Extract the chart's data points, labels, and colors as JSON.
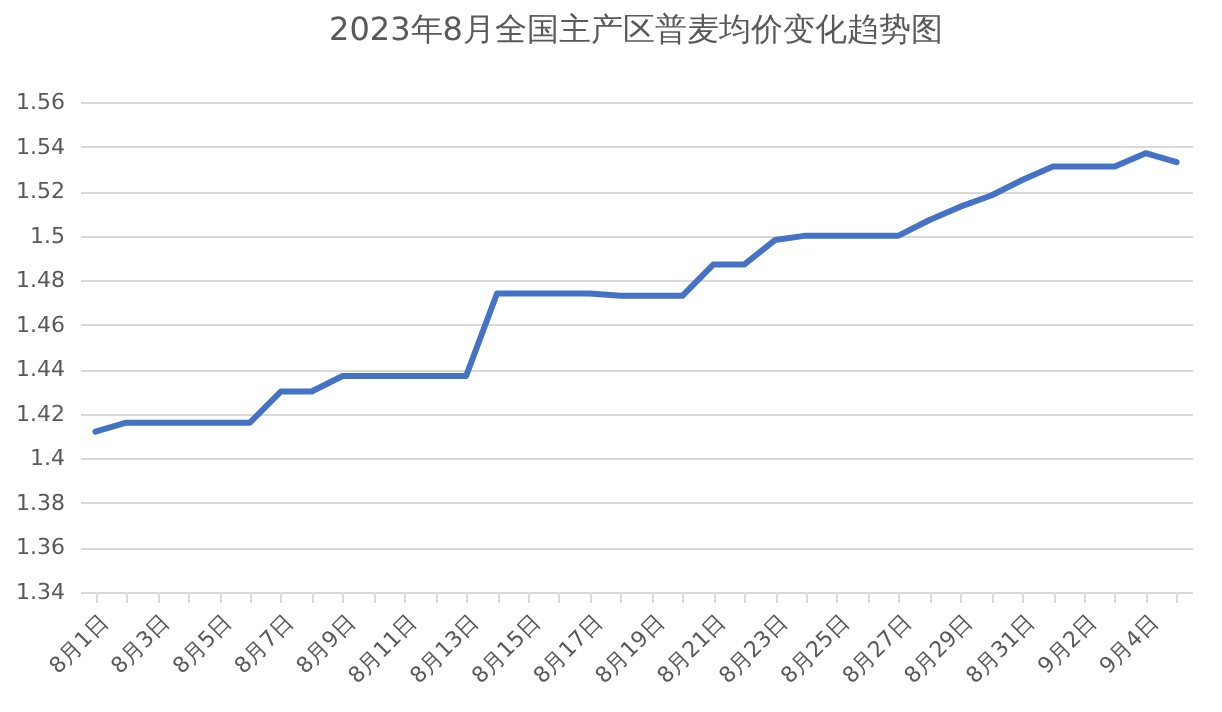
{
  "chart_data": {
    "type": "line",
    "title": "2023年8月全国主产区普麦均价变化趋势图",
    "categories": [
      "8月1日",
      null,
      "8月3日",
      null,
      "8月5日",
      null,
      "8月7日",
      null,
      "8月9日",
      null,
      "8月11日",
      null,
      "8月13日",
      null,
      "8月15日",
      null,
      "8月17日",
      null,
      "8月19日",
      null,
      "8月21日",
      null,
      "8月23日",
      null,
      "8月25日",
      null,
      "8月27日",
      null,
      "8月29日",
      null,
      "8月31日",
      null,
      "9月2日",
      null,
      "9月4日",
      null
    ],
    "series": [
      {
        "color": "#4472c4",
        "values": [
          1.412,
          1.416,
          1.416,
          1.416,
          1.416,
          1.416,
          1.43,
          1.43,
          1.437,
          1.437,
          1.437,
          1.437,
          1.437,
          1.474,
          1.474,
          1.474,
          1.474,
          1.473,
          1.473,
          1.473,
          1.487,
          1.487,
          1.498,
          1.5,
          1.5,
          1.5,
          1.5,
          1.507,
          1.513,
          1.518,
          1.525,
          1.531,
          1.531,
          1.531,
          1.537,
          1.533
        ]
      }
    ],
    "ylim": [
      1.34,
      1.56
    ],
    "yticks": [
      1.34,
      1.36,
      1.38,
      1.4,
      1.42,
      1.44,
      1.46,
      1.48,
      1.5,
      1.52,
      1.54,
      1.56
    ],
    "grid": "y",
    "marker": "none",
    "line_style": "solid"
  }
}
